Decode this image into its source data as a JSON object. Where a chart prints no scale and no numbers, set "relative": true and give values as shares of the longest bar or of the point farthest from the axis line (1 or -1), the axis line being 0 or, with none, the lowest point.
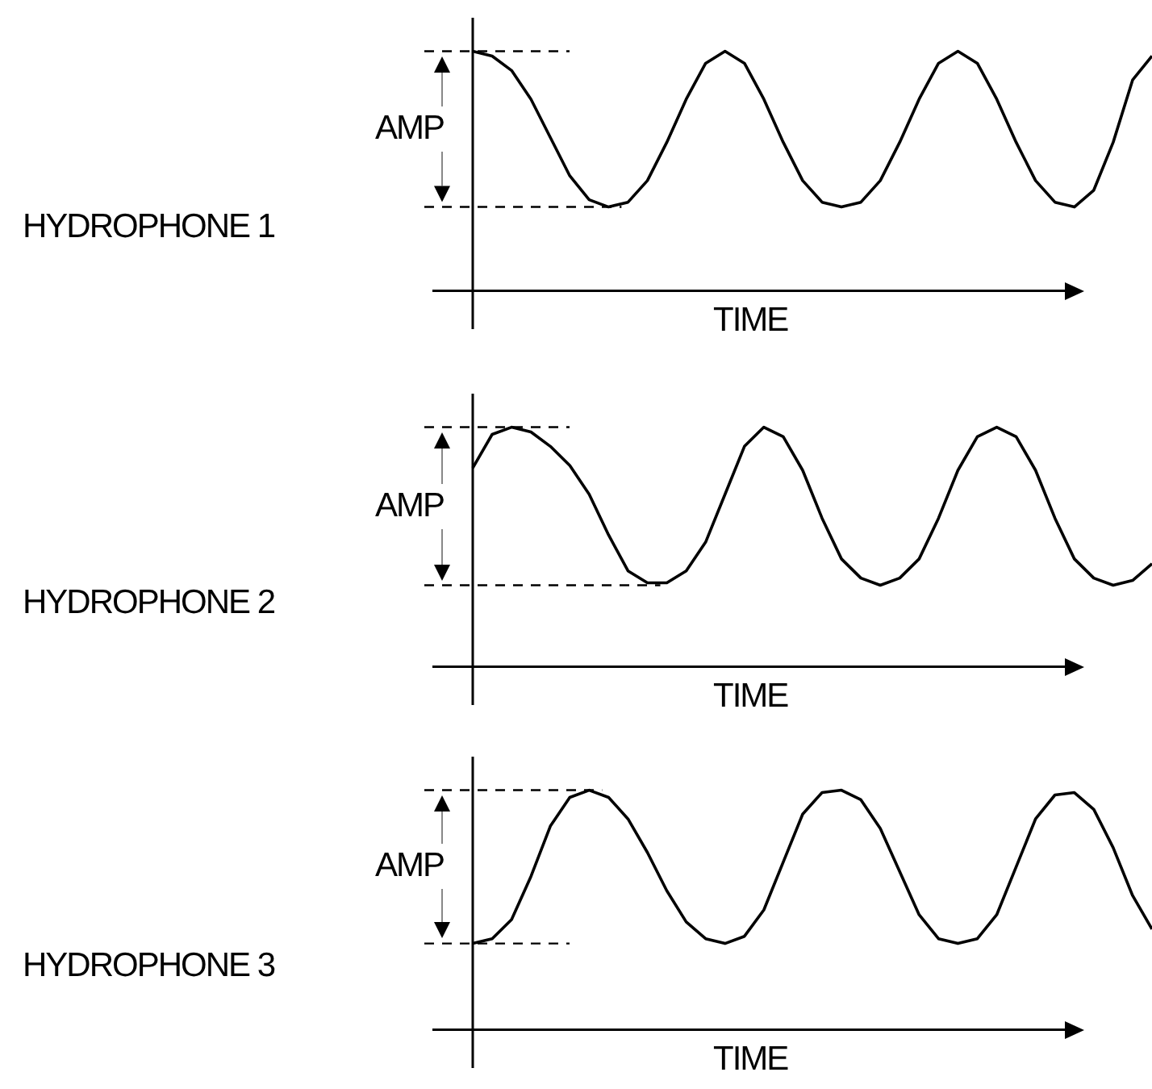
{
  "chart_data": [
    {
      "type": "line",
      "relative": true,
      "xlabel": "TIME",
      "ylabel": "HYDROPHONE 1",
      "annotations": [
        "AMP"
      ],
      "color": "#000000",
      "line_style": "solid",
      "categories": [
        null,
        null,
        null,
        null,
        null,
        null,
        null,
        null,
        null,
        null,
        null,
        null,
        null,
        null,
        null,
        null,
        null,
        null,
        null,
        null,
        null,
        null,
        null,
        null,
        null,
        null,
        null,
        null,
        null,
        null,
        null,
        null,
        null,
        null,
        null,
        null
      ],
      "values": [
        1.0,
        0.98,
        0.92,
        0.8,
        0.64,
        0.48,
        0.38,
        0.35,
        0.37,
        0.46,
        0.62,
        0.8,
        0.95,
        1.0,
        0.95,
        0.8,
        0.62,
        0.46,
        0.37,
        0.35,
        0.37,
        0.46,
        0.62,
        0.8,
        0.95,
        1.0,
        0.95,
        0.8,
        0.62,
        0.46,
        0.37,
        0.35,
        0.42,
        0.62,
        0.88,
        0.98
      ],
      "ref_lines": [
        {
          "axis": "y",
          "value": 1.0,
          "line_style": "dashed"
        },
        {
          "axis": "y",
          "value": 0.35,
          "line_style": "dashed"
        }
      ]
    },
    {
      "type": "line",
      "relative": true,
      "xlabel": "TIME",
      "ylabel": "HYDROPHONE 2",
      "annotations": [
        "AMP"
      ],
      "color": "#000000",
      "line_style": "solid",
      "categories": [
        null,
        null,
        null,
        null,
        null,
        null,
        null,
        null,
        null,
        null,
        null,
        null,
        null,
        null,
        null,
        null,
        null,
        null,
        null,
        null,
        null,
        null,
        null,
        null,
        null,
        null,
        null,
        null,
        null,
        null,
        null,
        null,
        null,
        null,
        null,
        null
      ],
      "values": [
        0.83,
        0.97,
        1.0,
        0.98,
        0.92,
        0.84,
        0.72,
        0.55,
        0.4,
        0.35,
        0.35,
        0.4,
        0.52,
        0.72,
        0.92,
        1.0,
        0.96,
        0.82,
        0.62,
        0.45,
        0.37,
        0.34,
        0.37,
        0.45,
        0.62,
        0.82,
        0.96,
        1.0,
        0.96,
        0.82,
        0.62,
        0.45,
        0.37,
        0.34,
        0.36,
        0.43
      ],
      "ref_lines": [
        {
          "axis": "y",
          "value": 1.0,
          "line_style": "dashed"
        },
        {
          "axis": "y",
          "value": 0.34,
          "line_style": "dashed"
        }
      ]
    },
    {
      "type": "line",
      "relative": true,
      "xlabel": "TIME",
      "ylabel": "HYDROPHONE 3",
      "annotations": [
        "AMP"
      ],
      "color": "#000000",
      "line_style": "solid",
      "categories": [
        null,
        null,
        null,
        null,
        null,
        null,
        null,
        null,
        null,
        null,
        null,
        null,
        null,
        null,
        null,
        null,
        null,
        null,
        null,
        null,
        null,
        null,
        null,
        null,
        null,
        null,
        null,
        null,
        null,
        null,
        null,
        null,
        null,
        null,
        null,
        null
      ],
      "values": [
        0.36,
        0.38,
        0.46,
        0.64,
        0.85,
        0.97,
        1.0,
        0.97,
        0.88,
        0.74,
        0.58,
        0.45,
        0.38,
        0.36,
        0.39,
        0.5,
        0.7,
        0.9,
        0.99,
        1.0,
        0.96,
        0.84,
        0.66,
        0.48,
        0.38,
        0.36,
        0.38,
        0.48,
        0.68,
        0.88,
        0.98,
        0.99,
        0.92,
        0.76,
        0.56,
        0.42
      ],
      "ref_lines": [
        {
          "axis": "y",
          "value": 1.0,
          "line_style": "dashed"
        },
        {
          "axis": "y",
          "value": 0.36,
          "line_style": "dashed"
        }
      ]
    }
  ]
}
